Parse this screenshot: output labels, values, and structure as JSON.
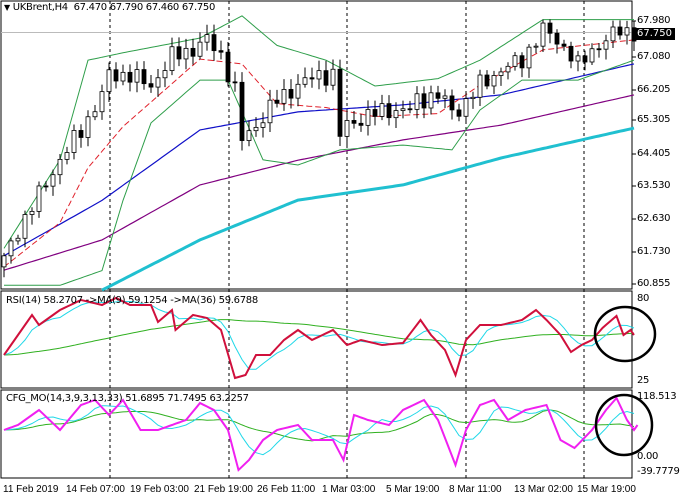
{
  "header": {
    "symbol": "UKBrent,H4",
    "ohlc": "67.470 67.790 67.460 67.750"
  },
  "price_axis": {
    "labels": [
      "67.980",
      "67.080",
      "66.205",
      "65.305",
      "64.405",
      "63.530",
      "62.630",
      "61.730",
      "60.855"
    ],
    "current": "67.750",
    "range": [
      60.855,
      67.98
    ]
  },
  "rsi": {
    "label": "RSI(14) 58.2707  ->MA(9) 59.1254  ->MA(36) 59.6788",
    "axis": [
      "80",
      "25"
    ]
  },
  "cfg": {
    "label": "CFG_MO(14,3,9,3,13,33) 51.6895 71.7495 63.2257",
    "axis": [
      "118.513",
      "0.00",
      "-39.7779"
    ]
  },
  "time_axis": [
    "11 Feb 2019",
    "14 Feb 07:00",
    "19 Feb 03:00",
    "21 Feb 19:00",
    "26 Feb 11:00",
    "1 Mar 03:00",
    "5 Mar 19:00",
    "8 Mar 11:00",
    "13 Mar 02:00",
    "15 Mar 19:00"
  ],
  "colors": {
    "bands": "#2e9e4a",
    "mid": "#e0202a",
    "ma_fast": "#1010c8",
    "ma_mid": "#800080",
    "ma_slow": "#20c0d0",
    "rsi": "#d0103c",
    "rsi_ma9": "#20d8e8",
    "rsi_ma36": "#30b020",
    "cfg": "#f020f0",
    "cfg_sig1": "#20d8e8",
    "cfg_sig2": "#30b020"
  },
  "chart_data": [
    {
      "type": "candlestick",
      "title": "UKBrent,H4",
      "ylim": [
        60.855,
        67.98
      ],
      "bars": 91,
      "close_path": [
        [
          0,
          61.6
        ],
        [
          2,
          62.4
        ],
        [
          5,
          63.35
        ],
        [
          8,
          64.3
        ],
        [
          11,
          65.1
        ],
        [
          14,
          66.05
        ],
        [
          15,
          66.6
        ],
        [
          18,
          66.6
        ],
        [
          21,
          66.3
        ],
        [
          24,
          67.1
        ],
        [
          27,
          67.3
        ],
        [
          29,
          67.55
        ],
        [
          31,
          67.14
        ],
        [
          33,
          66.19
        ],
        [
          34,
          64.84
        ],
        [
          36,
          65.24
        ],
        [
          39,
          65.92
        ],
        [
          42,
          66.33
        ],
        [
          45,
          66.6
        ],
        [
          47,
          66.6
        ],
        [
          47.5,
          64.84
        ],
        [
          49,
          65.24
        ],
        [
          52,
          65.51
        ],
        [
          55,
          65.65
        ],
        [
          58,
          65.65
        ],
        [
          59,
          65.92
        ],
        [
          62,
          66.06
        ],
        [
          64,
          65.65
        ],
        [
          64.5,
          64.57
        ],
        [
          65,
          65.65
        ],
        [
          68,
          66.33
        ],
        [
          71,
          66.73
        ],
        [
          74,
          67.0
        ],
        [
          77,
          67.82
        ],
        [
          79,
          67.55
        ],
        [
          81,
          67.14
        ],
        [
          81.5,
          66.73
        ],
        [
          84,
          67.28
        ],
        [
          87,
          67.68
        ],
        [
          88,
          67.82
        ],
        [
          90,
          67.75
        ]
      ],
      "bollinger_upper": [
        [
          0,
          61.9
        ],
        [
          8,
          64.3
        ],
        [
          12,
          67.0
        ],
        [
          17,
          67.2
        ],
        [
          28,
          67.6
        ],
        [
          34,
          68.2
        ],
        [
          39,
          67.4
        ],
        [
          46,
          67.0
        ],
        [
          53,
          66.3
        ],
        [
          62,
          66.5
        ],
        [
          68,
          67.0
        ],
        [
          77,
          68.1
        ],
        [
          90,
          68.1
        ]
      ],
      "bollinger_lower": [
        [
          0,
          60.9
        ],
        [
          8,
          60.9
        ],
        [
          14,
          61.3
        ],
        [
          17,
          63.2
        ],
        [
          21,
          65.3
        ],
        [
          28,
          66.46
        ],
        [
          32,
          66.46
        ],
        [
          37,
          64.3
        ],
        [
          42,
          64.16
        ],
        [
          48,
          64.57
        ],
        [
          57,
          64.7
        ],
        [
          64,
          64.57
        ],
        [
          68,
          65.65
        ],
        [
          74,
          66.46
        ],
        [
          82,
          66.46
        ],
        [
          90,
          67.0
        ]
      ],
      "ma_fast": [
        [
          0,
          61.7
        ],
        [
          14,
          63.2
        ],
        [
          28,
          65.11
        ],
        [
          42,
          65.6
        ],
        [
          57,
          65.79
        ],
        [
          71,
          66.06
        ],
        [
          90,
          66.9
        ]
      ],
      "ma_mid": [
        [
          0,
          61.31
        ],
        [
          14,
          62.13
        ],
        [
          28,
          63.62
        ],
        [
          42,
          64.29
        ],
        [
          57,
          64.84
        ],
        [
          71,
          65.24
        ],
        [
          90,
          66.06
        ]
      ],
      "ma_slow": [
        [
          14,
          60.77
        ],
        [
          28,
          62.13
        ],
        [
          42,
          63.21
        ],
        [
          57,
          63.62
        ],
        [
          71,
          64.35
        ],
        [
          90,
          65.16
        ]
      ]
    },
    {
      "type": "line",
      "title": "RSI(14)",
      "ylim": [
        25,
        80
      ],
      "rsi": [
        [
          0,
          42.9
        ],
        [
          2,
          55.7
        ],
        [
          4,
          68.5
        ],
        [
          5,
          62.1
        ],
        [
          8,
          71.7
        ],
        [
          11,
          78.1
        ],
        [
          14,
          74.9
        ],
        [
          16,
          79.4
        ],
        [
          18,
          74.9
        ],
        [
          21,
          74.9
        ],
        [
          22,
          64.0
        ],
        [
          24,
          71.7
        ],
        [
          24.5,
          58.9
        ],
        [
          27,
          68.5
        ],
        [
          29,
          66.6
        ],
        [
          31,
          58.9
        ],
        [
          33,
          28.2
        ],
        [
          34.5,
          30.1
        ],
        [
          36,
          42.9
        ],
        [
          38,
          42.9
        ],
        [
          40,
          52.5
        ],
        [
          42,
          58.9
        ],
        [
          44,
          52.5
        ],
        [
          47,
          58.9
        ],
        [
          49,
          49.3
        ],
        [
          51,
          52.5
        ],
        [
          54,
          49.3
        ],
        [
          57,
          50.6
        ],
        [
          59.5,
          65.3
        ],
        [
          61,
          55.7
        ],
        [
          63,
          46.1
        ],
        [
          64.5,
          30.1
        ],
        [
          66,
          52.5
        ],
        [
          68,
          62.1
        ],
        [
          71,
          62.1
        ],
        [
          74,
          65.3
        ],
        [
          76,
          71.7
        ],
        [
          77.5,
          65.3
        ],
        [
          79.5,
          55.7
        ],
        [
          81,
          44.8
        ],
        [
          82.5,
          49.3
        ],
        [
          84,
          52.5
        ],
        [
          85.5,
          60.2
        ],
        [
          87.5,
          67.9
        ],
        [
          88.5,
          55.7
        ],
        [
          89.5,
          58.9
        ],
        [
          90,
          55.7
        ]
      ]
    },
    {
      "type": "line",
      "title": "CFG_MO",
      "ylim": [
        -39.7779,
        118.513
      ],
      "cfg": [
        [
          0,
          52.5
        ],
        [
          2,
          62.2
        ],
        [
          5,
          91.3
        ],
        [
          8,
          52.5
        ],
        [
          11,
          101
        ],
        [
          13,
          110.8
        ],
        [
          15,
          81.6
        ],
        [
          17,
          110.8
        ],
        [
          19.5,
          52.5
        ],
        [
          22,
          52.5
        ],
        [
          24,
          62.2
        ],
        [
          26,
          71.9
        ],
        [
          28,
          104.9
        ],
        [
          30,
          91.3
        ],
        [
          32,
          52.5
        ],
        [
          33.5,
          -25.3
        ],
        [
          35,
          -5.8
        ],
        [
          37,
          33
        ],
        [
          39,
          52.5
        ],
        [
          42,
          62.2
        ],
        [
          44,
          33
        ],
        [
          47,
          33
        ],
        [
          48.5,
          -5.8
        ],
        [
          50,
          81.6
        ],
        [
          52,
          71.9
        ],
        [
          55,
          62.2
        ],
        [
          57,
          91.3
        ],
        [
          60,
          110.8
        ],
        [
          62,
          71.9
        ],
        [
          64.5,
          -15.5
        ],
        [
          66,
          52.5
        ],
        [
          68,
          101
        ],
        [
          70,
          110.8
        ],
        [
          72,
          71.9
        ],
        [
          74.5,
          91.3
        ],
        [
          77.5,
          101
        ],
        [
          79.5,
          33
        ],
        [
          81.5,
          17.5
        ],
        [
          84,
          52.5
        ],
        [
          86,
          91.3
        ],
        [
          87.5,
          114.6
        ],
        [
          89,
          71.9
        ],
        [
          90,
          52.5
        ],
        [
          90.5,
          62.2
        ]
      ]
    }
  ]
}
